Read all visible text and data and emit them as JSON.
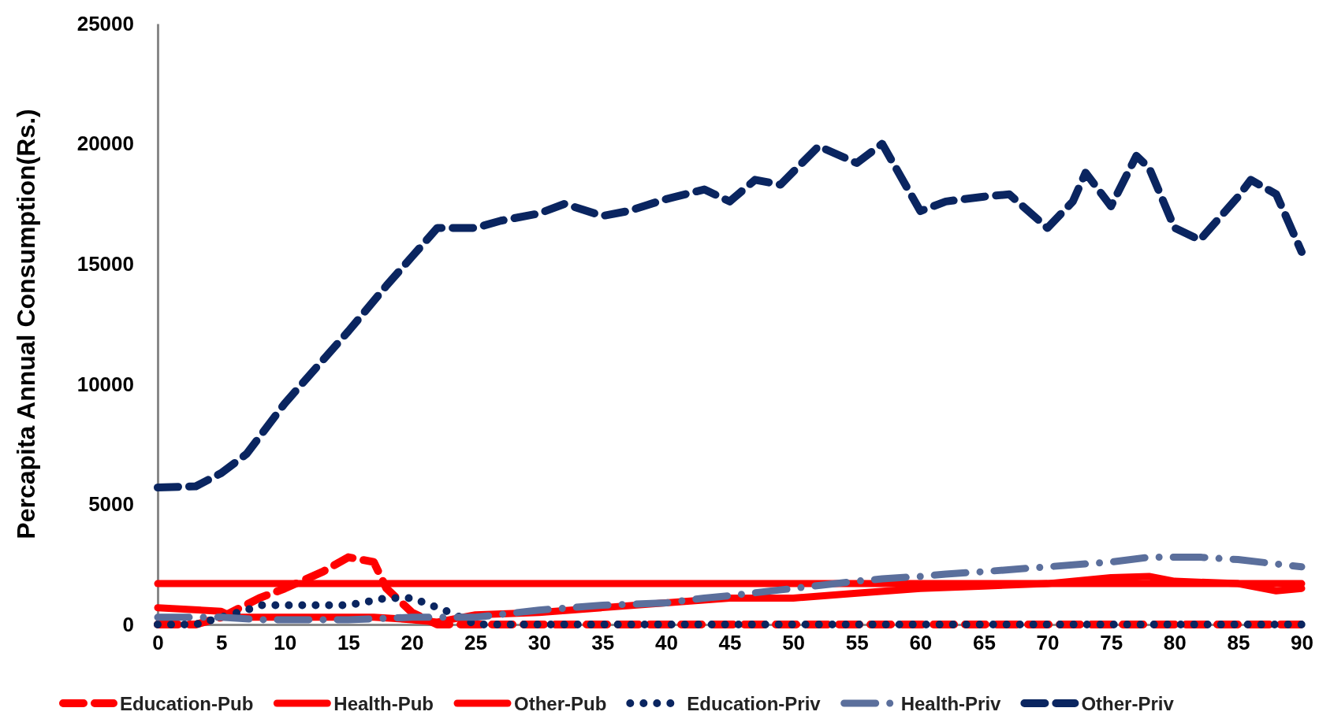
{
  "chart_data": {
    "type": "line",
    "ylabel": "Percapita Annual Consumption(Rs.)",
    "xlim": [
      0,
      90
    ],
    "xticks": [
      0,
      5,
      10,
      15,
      20,
      25,
      30,
      35,
      40,
      45,
      50,
      55,
      60,
      65,
      70,
      75,
      80,
      85,
      90
    ],
    "ylim": [
      0,
      25000
    ],
    "yticks": [
      0,
      5000,
      10000,
      15000,
      20000,
      25000
    ],
    "grid": false,
    "legend": "bottom",
    "marker": "none",
    "series": [
      {
        "name": "Education-Pub",
        "color": "#ff0000",
        "line_style": "dashed",
        "x": [
          0,
          3,
          5,
          8,
          10,
          13,
          15,
          17,
          18,
          20,
          22,
          25,
          30,
          40,
          50,
          60,
          70,
          80,
          90
        ],
        "values": [
          0,
          0,
          300,
          1100,
          1500,
          2200,
          2800,
          2600,
          1500,
          500,
          0,
          0,
          0,
          0,
          0,
          0,
          0,
          0,
          0
        ]
      },
      {
        "name": "Health-Pub",
        "color": "#ff0000",
        "line_style": "solid",
        "x": [
          0,
          5,
          6,
          10,
          15,
          17,
          20,
          22,
          25,
          30,
          35,
          40,
          45,
          50,
          55,
          60,
          65,
          70,
          75,
          78,
          80,
          85,
          88,
          90
        ],
        "values": [
          700,
          550,
          300,
          300,
          300,
          300,
          200,
          100,
          400,
          500,
          700,
          900,
          1100,
          1100,
          1300,
          1500,
          1600,
          1700,
          1950,
          2000,
          1800,
          1700,
          1400,
          1500
        ]
      },
      {
        "name": "Other-Pub",
        "color": "#ff0000",
        "line_style": "solid",
        "x": [
          0,
          90
        ],
        "values": [
          1700,
          1700
        ]
      },
      {
        "name": "Education-Priv",
        "color": "#0a2560",
        "line_style": "dotted",
        "x": [
          0,
          3,
          5,
          7,
          8,
          10,
          15,
          16,
          18,
          20,
          22,
          23,
          25,
          30,
          40,
          50,
          60,
          70,
          80,
          90
        ],
        "values": [
          0,
          0,
          300,
          600,
          800,
          800,
          800,
          900,
          1100,
          1100,
          700,
          500,
          0,
          0,
          0,
          0,
          0,
          0,
          0,
          0
        ]
      },
      {
        "name": "Health-Priv",
        "color": "#5b6f9c",
        "line_style": "dashdot",
        "x": [
          0,
          5,
          8,
          10,
          15,
          20,
          25,
          30,
          35,
          40,
          43,
          45,
          50,
          55,
          57,
          60,
          62,
          65,
          70,
          75,
          78,
          80,
          82,
          85,
          90
        ],
        "values": [
          300,
          300,
          200,
          200,
          200,
          300,
          300,
          600,
          800,
          900,
          1100,
          1200,
          1500,
          1800,
          1900,
          2000,
          2100,
          2200,
          2400,
          2600,
          2800,
          2800,
          2800,
          2700,
          2400
        ]
      },
      {
        "name": "Other-Priv",
        "color": "#0a2560",
        "line_style": "dashed",
        "x": [
          0,
          3,
          5,
          7,
          10,
          13,
          15,
          18,
          20,
          22,
          25,
          27,
          30,
          32,
          35,
          37,
          40,
          43,
          45,
          47,
          49,
          52,
          55,
          57,
          60,
          62,
          65,
          67,
          70,
          72,
          73,
          75,
          77,
          78,
          80,
          82,
          85,
          86,
          88,
          90
        ],
        "values": [
          5700,
          5750,
          6300,
          7100,
          9200,
          11000,
          12200,
          14100,
          15300,
          16500,
          16500,
          16800,
          17100,
          17500,
          17000,
          17200,
          17700,
          18100,
          17600,
          18500,
          18300,
          19900,
          19200,
          20000,
          17200,
          17600,
          17800,
          17900,
          16500,
          17600,
          18800,
          17400,
          19500,
          19000,
          16500,
          16000,
          17800,
          18500,
          17900,
          15500
        ]
      }
    ]
  }
}
